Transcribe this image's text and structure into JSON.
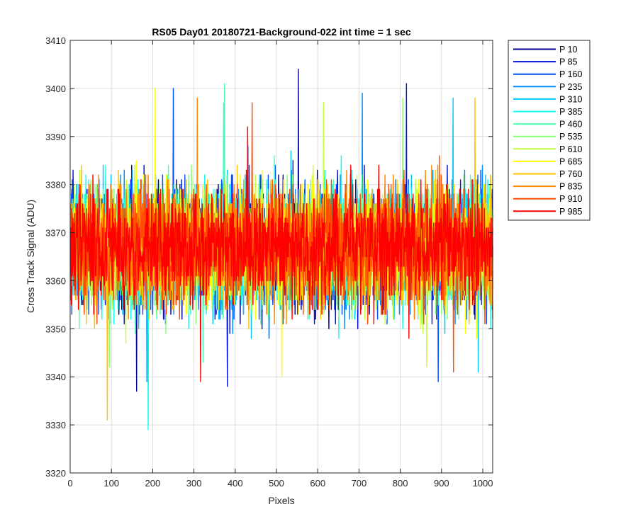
{
  "chart_data": {
    "type": "line",
    "title": "RS05 Day01 20180721-Background-022 int time = 1 sec",
    "xlabel": "Pixels",
    "ylabel": "Cross Track Signal (ADU)",
    "xlim": [
      0,
      1024
    ],
    "ylim": [
      3320,
      3410
    ],
    "xticks": [
      0,
      100,
      200,
      300,
      400,
      500,
      600,
      700,
      800,
      900,
      1000
    ],
    "yticks": [
      3320,
      3330,
      3340,
      3350,
      3360,
      3370,
      3380,
      3390,
      3400,
      3410
    ],
    "grid": true,
    "legend_position": "outside-top-right",
    "n_points": 1024,
    "series": [
      {
        "name": "P 10",
        "color": "#00008F",
        "mean": 3367,
        "noise_range": [
          3337,
          3404
        ]
      },
      {
        "name": "P 85",
        "color": "#0014DB",
        "mean": 3367,
        "noise_range": [
          3338,
          3401
        ]
      },
      {
        "name": "P 160",
        "color": "#0050FF",
        "mean": 3367,
        "noise_range": [
          3339,
          3400
        ]
      },
      {
        "name": "P 235",
        "color": "#008CFF",
        "mean": 3367,
        "noise_range": [
          3339,
          3399
        ]
      },
      {
        "name": "P 310",
        "color": "#00C8FF",
        "mean": 3367,
        "noise_range": [
          3341,
          3398
        ]
      },
      {
        "name": "P 385",
        "color": "#10FFEF",
        "mean": 3367,
        "noise_range": [
          3329,
          3397
        ]
      },
      {
        "name": "P 460",
        "color": "#4CFFB3",
        "mean": 3367,
        "noise_range": [
          3343,
          3401
        ]
      },
      {
        "name": "P 535",
        "color": "#88FF77",
        "mean": 3367,
        "noise_range": [
          3342,
          3398
        ]
      },
      {
        "name": "P 610",
        "color": "#C4FF3B",
        "mean": 3367,
        "noise_range": [
          3342,
          3397
        ]
      },
      {
        "name": "P 685",
        "color": "#FFFF00",
        "mean": 3367,
        "noise_range": [
          3340,
          3400
        ]
      },
      {
        "name": "P 760",
        "color": "#FFC400",
        "mean": 3367,
        "noise_range": [
          3331,
          3398
        ]
      },
      {
        "name": "P 835",
        "color": "#FF8800",
        "mean": 3367,
        "noise_range": [
          3341,
          3398
        ]
      },
      {
        "name": "P 910",
        "color": "#FF4C00",
        "mean": 3367,
        "noise_range": [
          3341,
          3397
        ]
      },
      {
        "name": "P 985",
        "color": "#FF0000",
        "mean": 3367,
        "noise_range": [
          3339,
          3392
        ]
      }
    ]
  }
}
